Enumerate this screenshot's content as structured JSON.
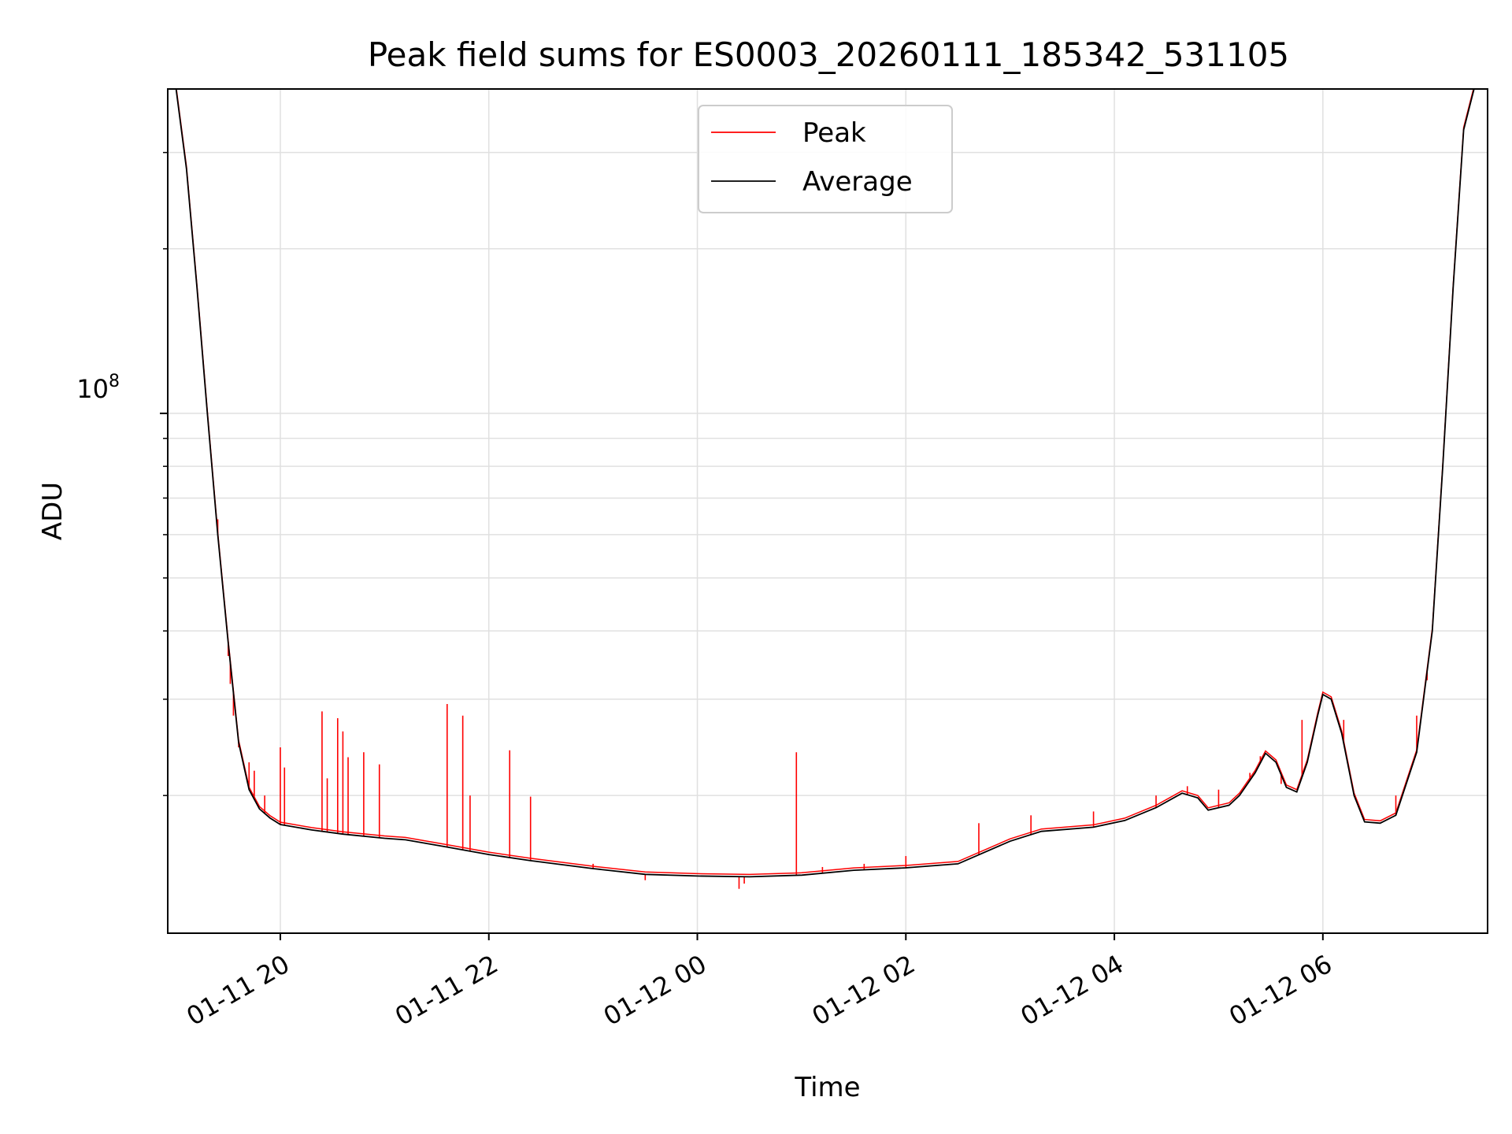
{
  "chart_data": {
    "type": "line",
    "title": "Peak field sums for ES0003_20260111_185342_531105",
    "xlabel": "Time",
    "ylabel": "ADU",
    "yscale": "log",
    "ylim": [
      11200000,
      392000000
    ],
    "xlim_hours": [
      -1.08,
      11.58
    ],
    "x_ticks": [
      {
        "label": "01-11 20",
        "hour": 0
      },
      {
        "label": "01-11 22",
        "hour": 2
      },
      {
        "label": "01-12 00",
        "hour": 4
      },
      {
        "label": "01-12 02",
        "hour": 6
      },
      {
        "label": "01-12 04",
        "hour": 8
      },
      {
        "label": "01-12 06",
        "hour": 10
      }
    ],
    "y_tick_major": {
      "base": "10",
      "exponent": "8",
      "value": 100000000
    },
    "y_minor_ticks": [
      20000000,
      30000000,
      40000000,
      50000000,
      60000000,
      70000000,
      80000000,
      90000000,
      200000000,
      300000000
    ],
    "grid": true,
    "legend_position": "top-center",
    "colors": {
      "peak": "#ff0000",
      "average": "#000000"
    },
    "series": [
      {
        "name": "Peak",
        "color": "#ff0000",
        "spikes": [
          [
            -0.6,
            64000000
          ],
          [
            -0.55,
            48000000
          ],
          [
            -0.5,
            36000000
          ],
          [
            -0.48,
            32000000
          ],
          [
            -0.45,
            28000000
          ],
          [
            -0.4,
            24500000
          ],
          [
            -0.3,
            23000000
          ],
          [
            -0.25,
            22200000
          ],
          [
            -0.15,
            20000000
          ],
          [
            0.0,
            24500000
          ],
          [
            0.04,
            22500000
          ],
          [
            0.4,
            28500000
          ],
          [
            0.45,
            21500000
          ],
          [
            0.55,
            27700000
          ],
          [
            0.6,
            26200000
          ],
          [
            0.65,
            23500000
          ],
          [
            0.8,
            24000000
          ],
          [
            0.95,
            22800000
          ],
          [
            1.6,
            29400000
          ],
          [
            1.75,
            28000000
          ],
          [
            1.82,
            20000000
          ],
          [
            2.2,
            24200000
          ],
          [
            2.4,
            19900000
          ],
          [
            3.0,
            15000000
          ],
          [
            3.5,
            14000000
          ],
          [
            4.4,
            13500000
          ],
          [
            4.45,
            13800000
          ],
          [
            4.95,
            24000000
          ],
          [
            5.2,
            14800000
          ],
          [
            5.6,
            15000000
          ],
          [
            6.0,
            15500000
          ],
          [
            6.7,
            17800000
          ],
          [
            7.2,
            18400000
          ],
          [
            7.8,
            18700000
          ],
          [
            8.4,
            20000000
          ],
          [
            8.7,
            20800000
          ],
          [
            9.0,
            20500000
          ],
          [
            9.3,
            22000000
          ],
          [
            9.4,
            23600000
          ],
          [
            9.6,
            21000000
          ],
          [
            9.8,
            27500000
          ],
          [
            10.0,
            30700000
          ],
          [
            10.2,
            27500000
          ],
          [
            10.7,
            20000000
          ],
          [
            10.9,
            28000000
          ],
          [
            11.0,
            32500000
          ]
        ]
      },
      {
        "name": "Average",
        "color": "#000000",
        "curve": [
          [
            -1.08,
            392000000
          ],
          [
            -1.0,
            392000000
          ],
          [
            -0.9,
            280000000
          ],
          [
            -0.8,
            170000000
          ],
          [
            -0.7,
            100000000
          ],
          [
            -0.6,
            60000000
          ],
          [
            -0.5,
            38000000
          ],
          [
            -0.4,
            25000000
          ],
          [
            -0.3,
            20500000
          ],
          [
            -0.2,
            18900000
          ],
          [
            -0.1,
            18200000
          ],
          [
            0.0,
            17700000
          ],
          [
            0.3,
            17300000
          ],
          [
            0.6,
            17000000
          ],
          [
            1.0,
            16700000
          ],
          [
            1.2,
            16600000
          ],
          [
            1.6,
            16100000
          ],
          [
            2.0,
            15600000
          ],
          [
            2.4,
            15200000
          ],
          [
            3.0,
            14700000
          ],
          [
            3.5,
            14350000
          ],
          [
            4.0,
            14250000
          ],
          [
            4.5,
            14200000
          ],
          [
            5.0,
            14300000
          ],
          [
            5.5,
            14600000
          ],
          [
            6.0,
            14750000
          ],
          [
            6.5,
            15000000
          ],
          [
            7.0,
            16500000
          ],
          [
            7.3,
            17200000
          ],
          [
            7.8,
            17500000
          ],
          [
            8.1,
            18000000
          ],
          [
            8.4,
            19000000
          ],
          [
            8.65,
            20200000
          ],
          [
            8.8,
            19800000
          ],
          [
            8.9,
            18800000
          ],
          [
            9.1,
            19200000
          ],
          [
            9.2,
            20000000
          ],
          [
            9.35,
            22000000
          ],
          [
            9.45,
            23900000
          ],
          [
            9.55,
            23000000
          ],
          [
            9.65,
            20700000
          ],
          [
            9.75,
            20300000
          ],
          [
            9.85,
            23000000
          ],
          [
            9.95,
            28000000
          ],
          [
            10.0,
            30600000
          ],
          [
            10.08,
            30000000
          ],
          [
            10.18,
            26000000
          ],
          [
            10.3,
            20000000
          ],
          [
            10.4,
            17900000
          ],
          [
            10.55,
            17800000
          ],
          [
            10.7,
            18400000
          ],
          [
            10.9,
            24000000
          ],
          [
            11.05,
            40000000
          ],
          [
            11.15,
            80000000
          ],
          [
            11.25,
            170000000
          ],
          [
            11.35,
            330000000
          ],
          [
            11.45,
            392000000
          ],
          [
            11.58,
            392000000
          ]
        ]
      }
    ]
  }
}
